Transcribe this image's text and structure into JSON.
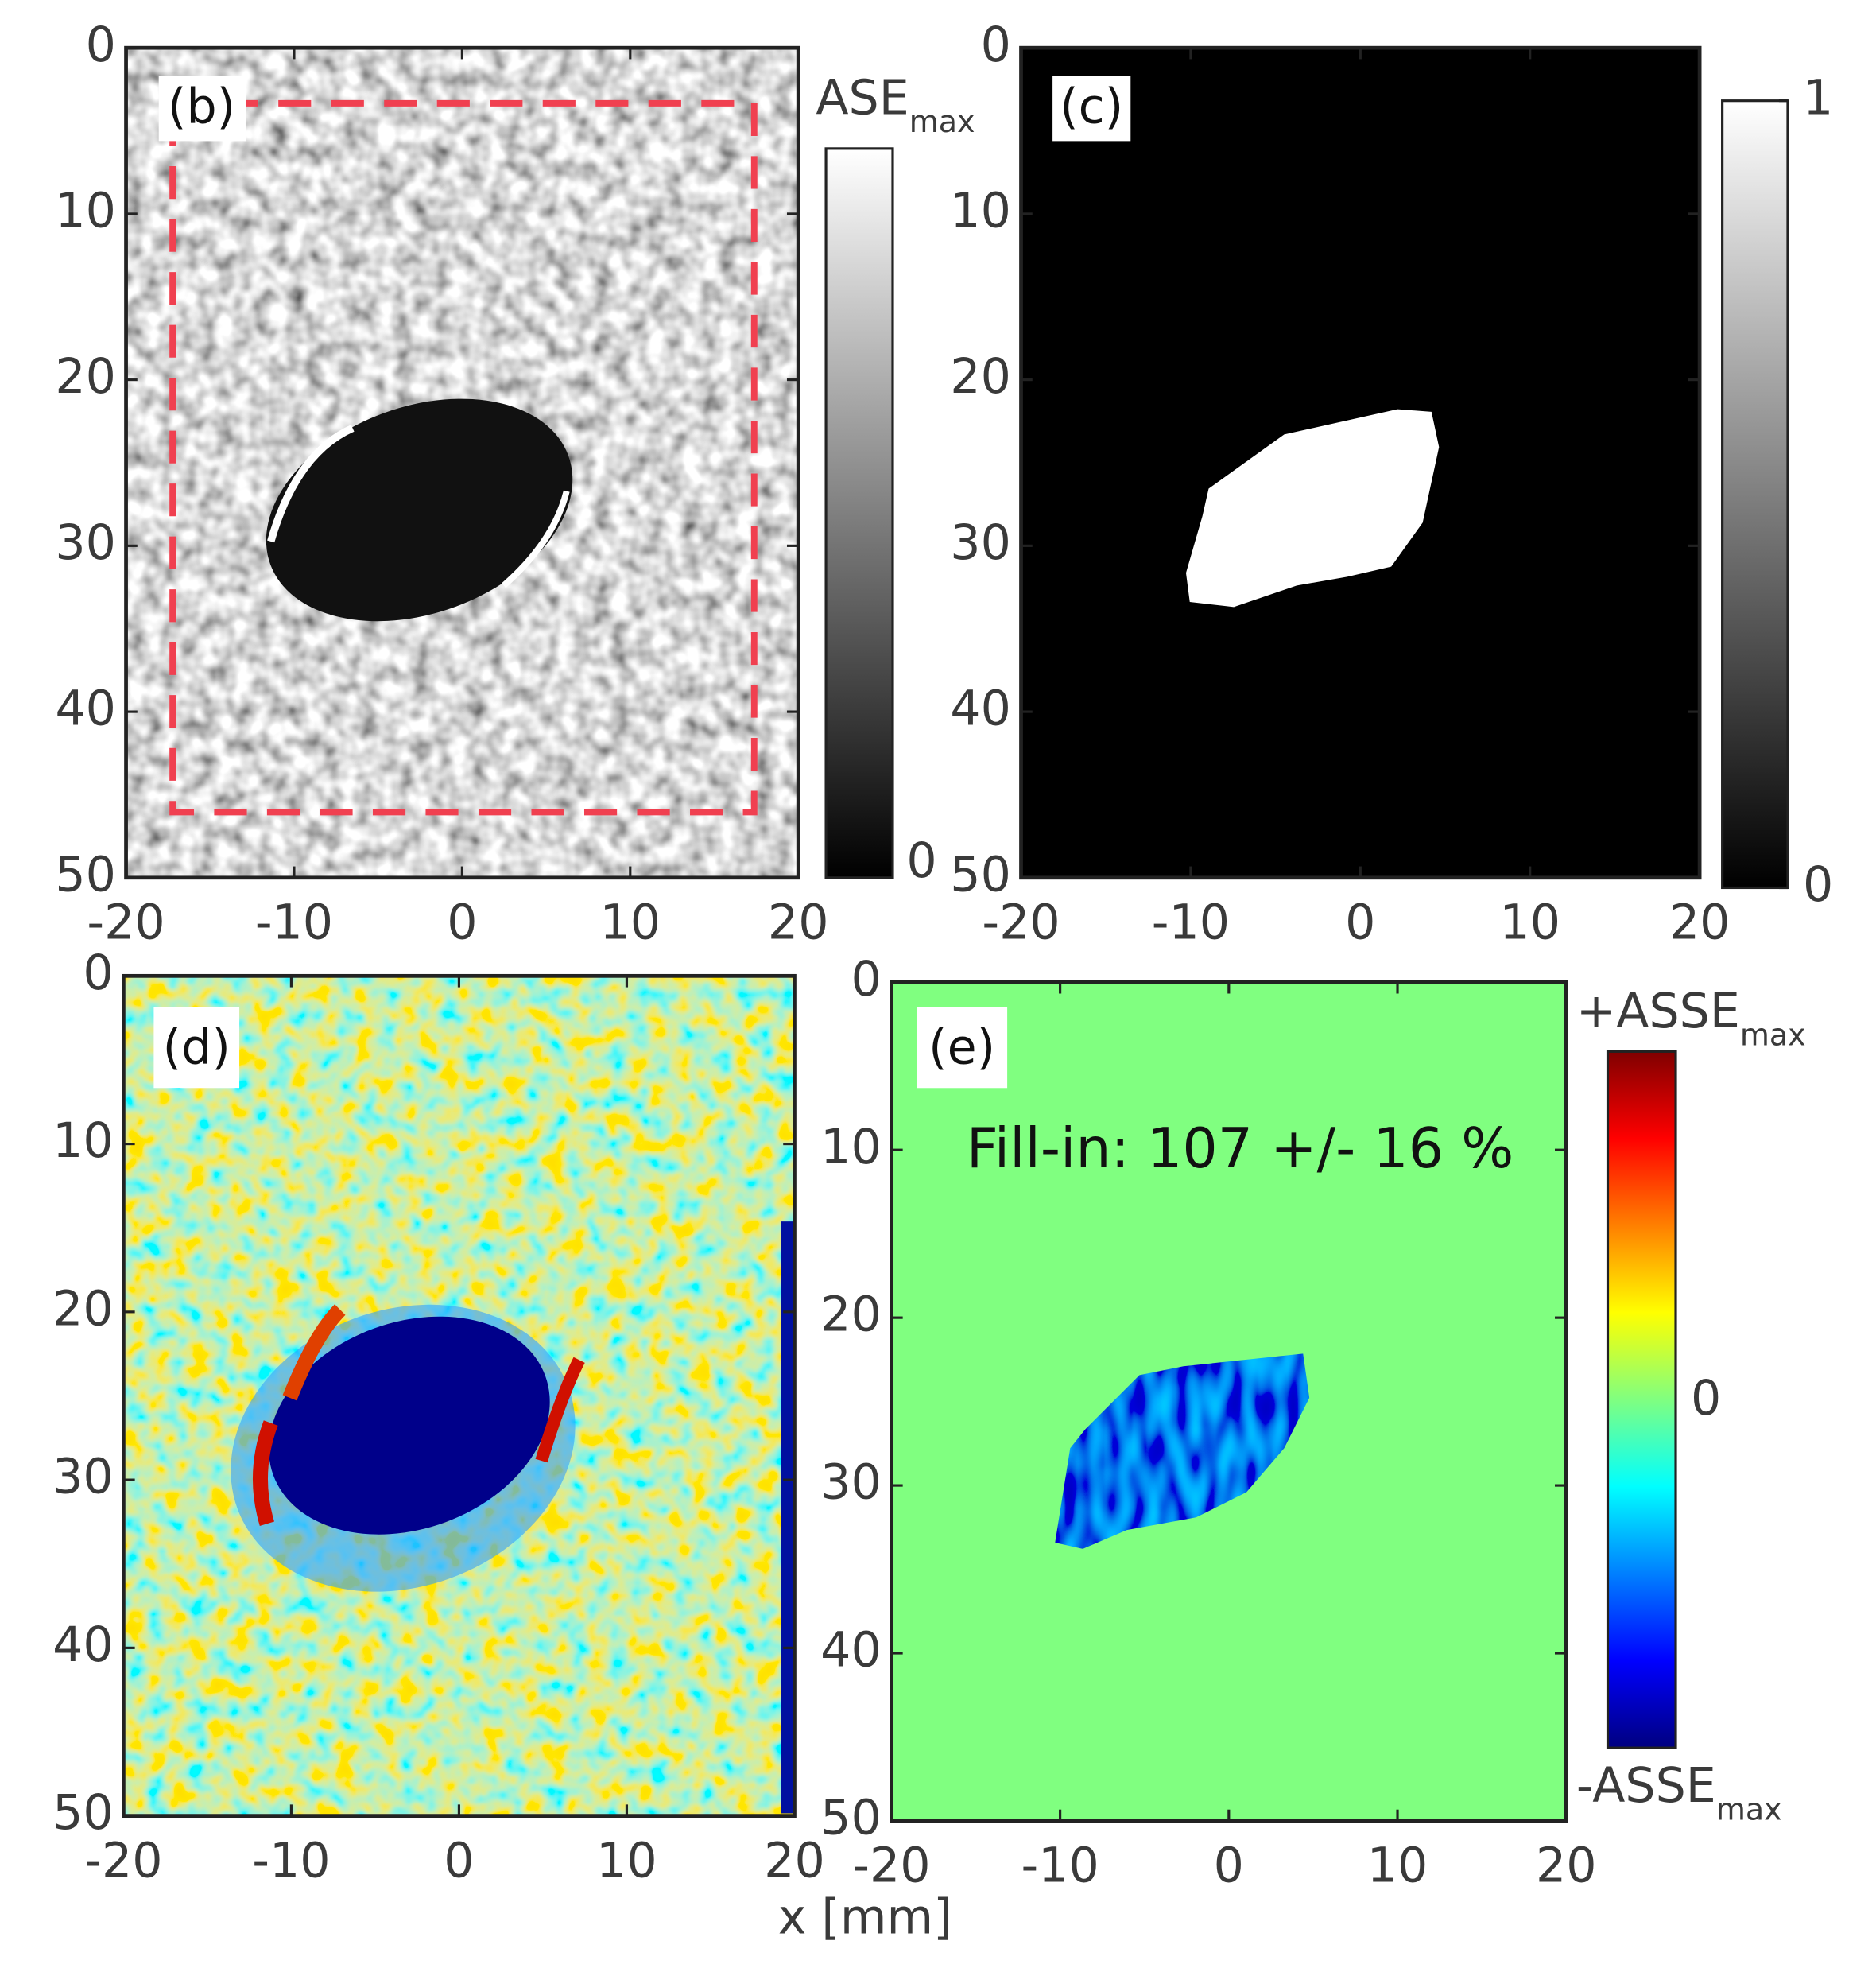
{
  "xlabel": "x [mm]",
  "chart_data": [
    {
      "type": "heatmap",
      "panel_label": "(b)",
      "colormap": "gray",
      "xlim": [
        -20,
        20
      ],
      "xticks": [
        -20,
        -10,
        0,
        10,
        20
      ],
      "ylim": [
        50,
        0
      ],
      "yticks": [
        0,
        10,
        20,
        30,
        40,
        50
      ],
      "colorbar_title": {
        "text": "ASE",
        "sub": "max"
      },
      "colorbar_ticks": [
        0
      ]
    },
    {
      "type": "heatmap",
      "panel_label": "(c)",
      "colormap": "gray",
      "xlim": [
        -20,
        20
      ],
      "xticks": [
        -20,
        -10,
        0,
        10,
        20
      ],
      "ylim": [
        50,
        0
      ],
      "yticks": [
        0,
        10,
        20,
        30,
        40,
        50
      ],
      "clim": [
        0,
        1
      ],
      "colorbar_ticks": [
        0,
        1
      ]
    },
    {
      "type": "heatmap",
      "panel_label": "(d)",
      "colormap": "jet",
      "xlim": [
        -20,
        20
      ],
      "xticks": [
        -20,
        -10,
        0,
        10,
        20
      ],
      "ylim": [
        50,
        0
      ],
      "yticks": [
        0,
        10,
        20,
        30,
        40,
        50
      ]
    },
    {
      "type": "heatmap",
      "panel_label": "(e)",
      "colormap": "jet",
      "xlim": [
        -20,
        20
      ],
      "xticks": [
        -20,
        -10,
        0,
        10,
        20
      ],
      "ylim": [
        50,
        0
      ],
      "yticks": [
        0,
        10,
        20,
        30,
        40,
        50
      ],
      "annotation": "Fill-in: 107 +/- 16 %",
      "colorbar_top_label": {
        "text": "+ASSE",
        "sub": "max"
      },
      "colorbar_bottom_label": {
        "text": "-ASSE",
        "sub": "max"
      },
      "colorbar_ticks": [
        0
      ]
    }
  ]
}
